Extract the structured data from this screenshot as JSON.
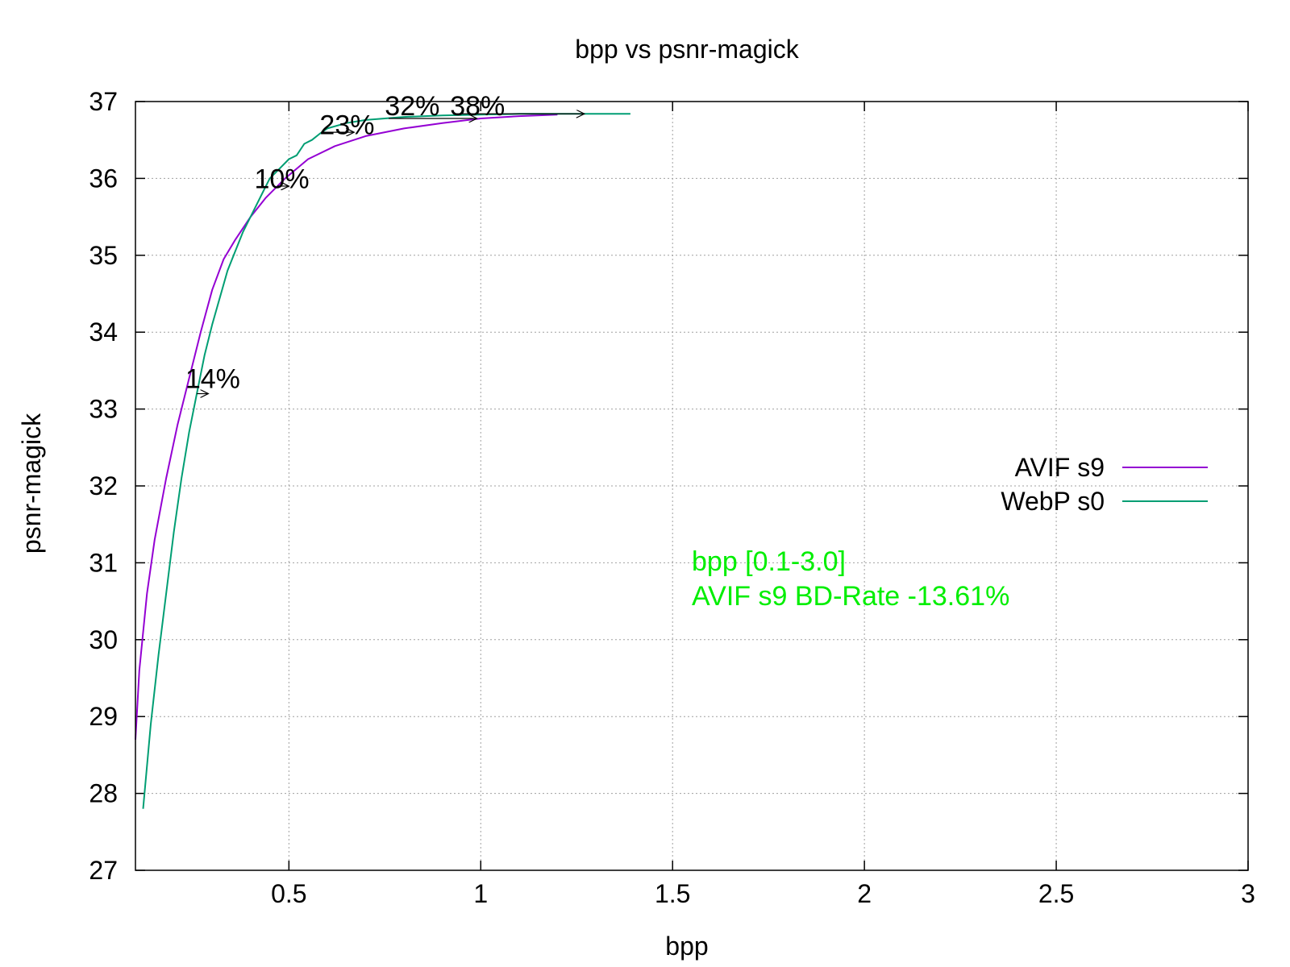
{
  "chart_data": {
    "type": "line",
    "title": "bpp vs psnr-magick",
    "xlabel": "bpp",
    "ylabel": "psnr-magick",
    "xlim": [
      0.1,
      3.0
    ],
    "ylim": [
      27,
      37
    ],
    "xticks": [
      0.5,
      1,
      1.5,
      2,
      2.5,
      3
    ],
    "yticks": [
      27,
      28,
      29,
      30,
      31,
      32,
      33,
      34,
      35,
      36,
      37
    ],
    "grid": true,
    "legend_position": "right",
    "series": [
      {
        "name": "AVIF s9",
        "color": "#9400d3",
        "x": [
          0.1,
          0.11,
          0.13,
          0.15,
          0.18,
          0.21,
          0.24,
          0.27,
          0.3,
          0.33,
          0.36,
          0.4,
          0.44,
          0.49,
          0.55,
          0.62,
          0.7,
          0.8,
          0.9,
          1.0,
          1.1,
          1.2
        ],
        "y": [
          28.7,
          29.6,
          30.6,
          31.3,
          32.1,
          32.8,
          33.4,
          34.0,
          34.55,
          34.95,
          35.2,
          35.5,
          35.75,
          36.0,
          36.25,
          36.42,
          36.55,
          36.65,
          36.72,
          36.78,
          36.81,
          36.83
        ]
      },
      {
        "name": "WebP s0",
        "color": "#009e73",
        "x": [
          0.12,
          0.14,
          0.16,
          0.18,
          0.2,
          0.22,
          0.24,
          0.26,
          0.28,
          0.3,
          0.32,
          0.34,
          0.36,
          0.38,
          0.39,
          0.41,
          0.43,
          0.45,
          0.47,
          0.5,
          0.52,
          0.54,
          0.56,
          0.58,
          0.6,
          0.65,
          0.7,
          0.8,
          0.9,
          1.0,
          1.1,
          1.2,
          1.3,
          1.39
        ],
        "y": [
          27.8,
          28.9,
          29.8,
          30.6,
          31.4,
          32.1,
          32.7,
          33.2,
          33.7,
          34.1,
          34.45,
          34.8,
          35.05,
          35.3,
          35.4,
          35.6,
          35.8,
          36.0,
          36.1,
          36.25,
          36.3,
          36.45,
          36.5,
          36.58,
          36.65,
          36.72,
          36.76,
          36.8,
          36.82,
          36.83,
          36.84,
          36.84,
          36.84,
          36.84
        ]
      }
    ],
    "annotations": [
      {
        "label": "14%",
        "x": 0.23,
        "y": 33.4,
        "from_x": 0.26,
        "to_x": 0.29,
        "arrow_y": 33.2
      },
      {
        "label": "10%",
        "x": 0.41,
        "y": 36.0,
        "from_x": 0.47,
        "to_x": 0.5,
        "arrow_y": 35.9
      },
      {
        "label": "23%",
        "x": 0.58,
        "y": 36.7,
        "from_x": 0.59,
        "to_x": 0.67,
        "arrow_y": 36.6
      },
      {
        "label": "32%",
        "x": 0.75,
        "y": 36.95,
        "from_x": 0.76,
        "to_x": 0.99,
        "arrow_y": 36.78
      },
      {
        "label": "38%",
        "x": 0.92,
        "y": 36.95,
        "from_x": 0.93,
        "to_x": 1.27,
        "arrow_y": 36.84
      }
    ],
    "bd_rate_lines": [
      {
        "text": "bpp [0.1-3.0]",
        "x": 1.55,
        "y": 30.9
      },
      {
        "text": "AVIF s9 BD-Rate -13.61%",
        "x": 1.55,
        "y": 30.45
      }
    ],
    "bd_rate_color": "#00ee00"
  }
}
